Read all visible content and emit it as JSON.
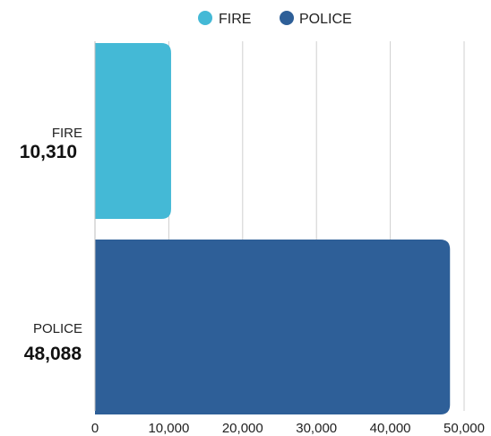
{
  "chart_data": {
    "type": "bar",
    "orientation": "horizontal",
    "categories": [
      "FIRE",
      "POLICE"
    ],
    "values": [
      10310,
      48088
    ],
    "value_labels": [
      "10,310",
      "48,088"
    ],
    "colors": [
      "#44b9d6",
      "#2e5f98"
    ],
    "legend": {
      "placement": "top-center",
      "entries": [
        {
          "label": "FIRE",
          "color": "#44b9d6"
        },
        {
          "label": "POLICE",
          "color": "#2e5f98"
        }
      ]
    },
    "xlim": [
      0,
      50000
    ],
    "x_ticks": [
      0,
      10000,
      20000,
      30000,
      40000,
      50000
    ],
    "x_tick_labels": [
      "0",
      "10,000",
      "20,000",
      "30,000",
      "40,000",
      "50,000"
    ],
    "grid": true
  }
}
